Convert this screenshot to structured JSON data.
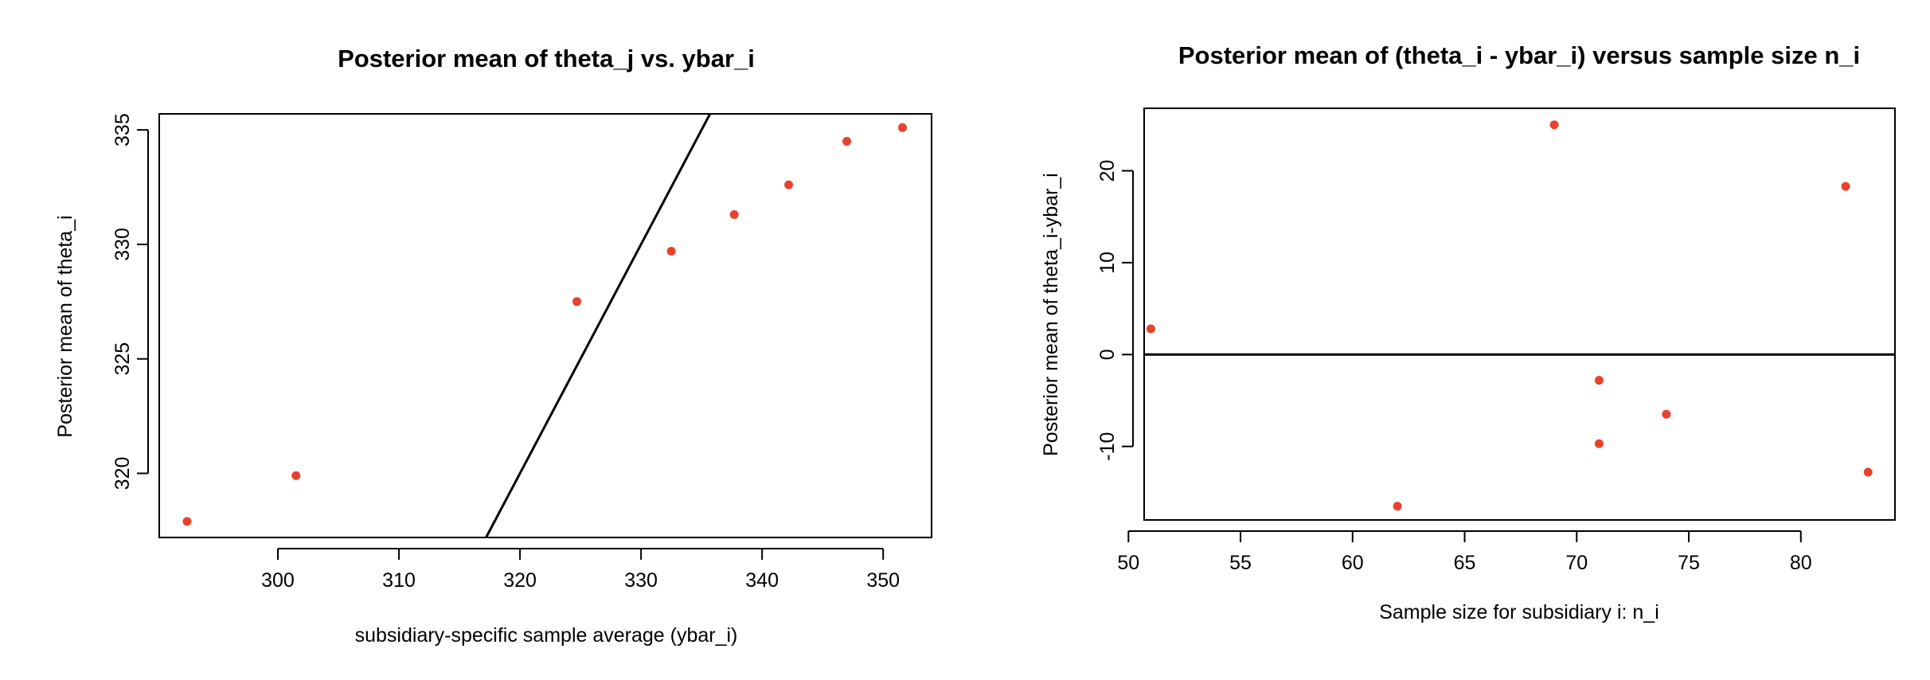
{
  "colors": {
    "point": "#e8412c",
    "line": "#000000",
    "axis": "#000000",
    "background": "#ffffff"
  },
  "chart_data": [
    {
      "type": "scatter",
      "title": "Posterior mean of theta_j vs. ybar_i",
      "xlabel": "subsidiary-specific sample average (ybar_i)",
      "ylabel": "Posterior mean of theta_i",
      "xlim": [
        290.2,
        354
      ],
      "ylim": [
        317.2,
        335.7
      ],
      "xticks": [
        300,
        310,
        320,
        330,
        340,
        350
      ],
      "yticks": [
        320,
        325,
        330,
        335
      ],
      "grid": false,
      "legend": "none",
      "x": [
        292.5,
        301.5,
        324.7,
        332.5,
        337.7,
        342.2,
        347,
        351.6
      ],
      "y": [
        317.9,
        319.9,
        327.5,
        329.7,
        331.3,
        332.6,
        334.5,
        335.1
      ],
      "reference_line": {
        "type": "abline",
        "intercept": 0,
        "slope": 1
      }
    },
    {
      "type": "scatter",
      "title": "Posterior mean of (theta_i - ybar_i) versus sample size n_i",
      "xlabel": "Sample size for subsidiary i: n_i",
      "ylabel": "Posterior mean of theta_i-ybar_i",
      "xlim": [
        50.7,
        84.2
      ],
      "ylim": [
        -18,
        26.8
      ],
      "xticks": [
        50,
        55,
        60,
        65,
        70,
        75,
        80
      ],
      "yticks": [
        -10,
        0,
        10,
        20
      ],
      "grid": false,
      "legend": "none",
      "x": [
        51,
        62,
        69,
        71,
        71,
        74,
        82,
        83
      ],
      "y": [
        2.8,
        -16.5,
        25,
        -2.8,
        -9.7,
        -6.5,
        18.3,
        -12.8
      ],
      "reference_line": {
        "type": "hline",
        "y": 0
      }
    }
  ]
}
